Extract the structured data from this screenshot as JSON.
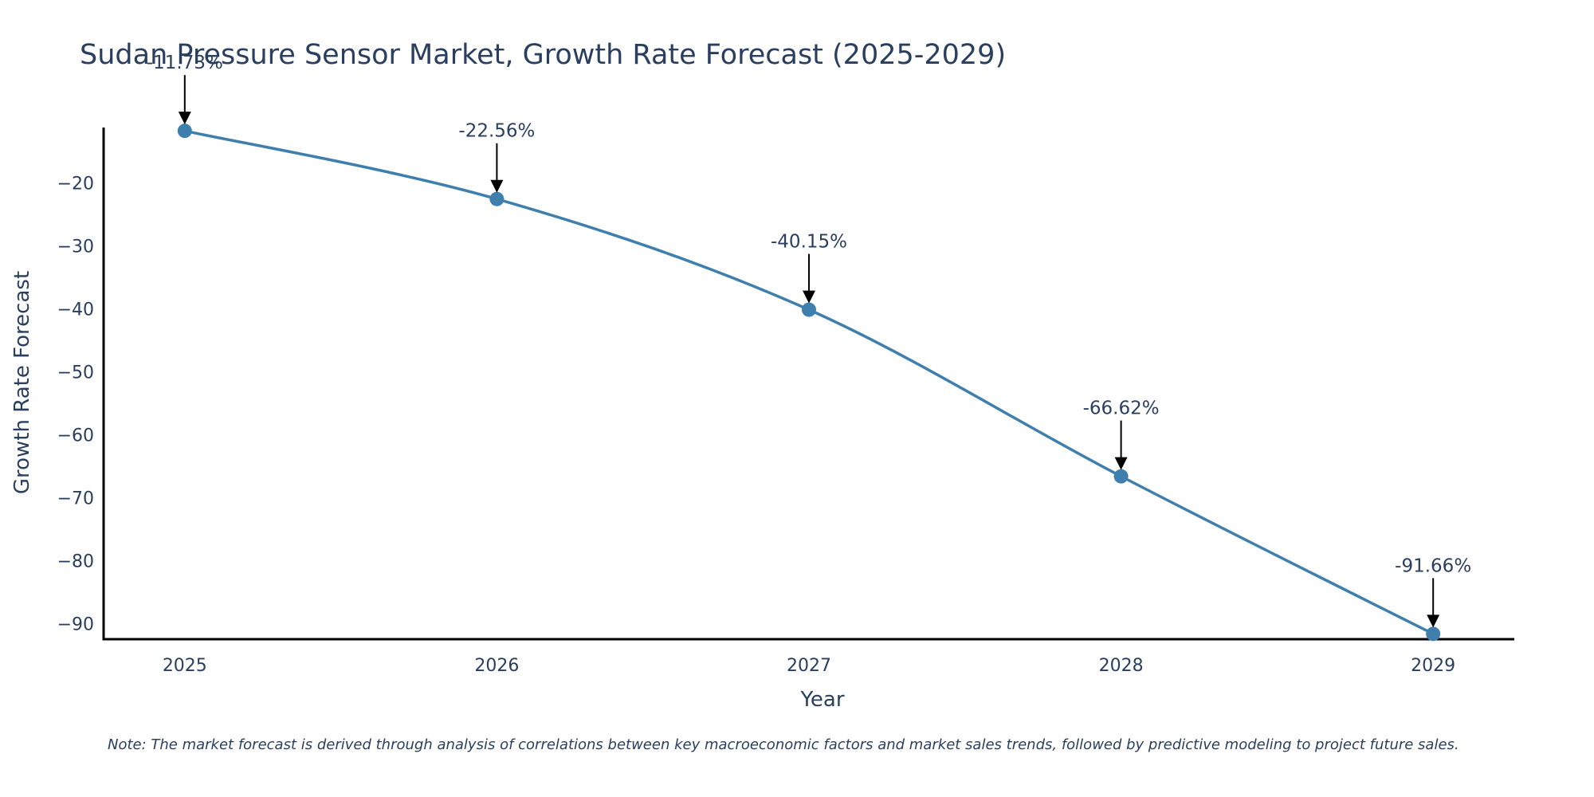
{
  "chart_data": {
    "type": "line",
    "title": "Sudan Pressure Sensor Market, Growth Rate Forecast (2025-2029)",
    "xlabel": "Year",
    "ylabel": "Growth Rate Forecast",
    "x": [
      "2025",
      "2026",
      "2027",
      "2028",
      "2029"
    ],
    "series": [
      {
        "name": "Growth Rate Forecast",
        "values": [
          -11.73,
          -22.56,
          -40.15,
          -66.62,
          -91.66
        ],
        "color": "#3f7fae",
        "line_shape": "spline"
      }
    ],
    "annotations": [
      "-11.73%",
      "-22.56%",
      "-40.15%",
      "-66.62%",
      "-91.66%"
    ],
    "y_ticks": [
      -20,
      -30,
      -40,
      -50,
      -60,
      -70,
      -80,
      -90
    ],
    "y_tick_labels": [
      "−20",
      "−30",
      "−40",
      "−50",
      "−60",
      "−70",
      "−80",
      "−90"
    ],
    "x_tick_labels": [
      "2025",
      "2026",
      "2027",
      "2028",
      "2029"
    ],
    "ylim": [
      -92.5,
      -11.2
    ],
    "xlim": [
      2024.74,
      2029.26
    ],
    "grid": false,
    "legend": "none",
    "note": "Note: The market forecast is derived through analysis of correlations between key macroeconomic factors and market sales trends, followed by predictive modeling to project future sales."
  }
}
